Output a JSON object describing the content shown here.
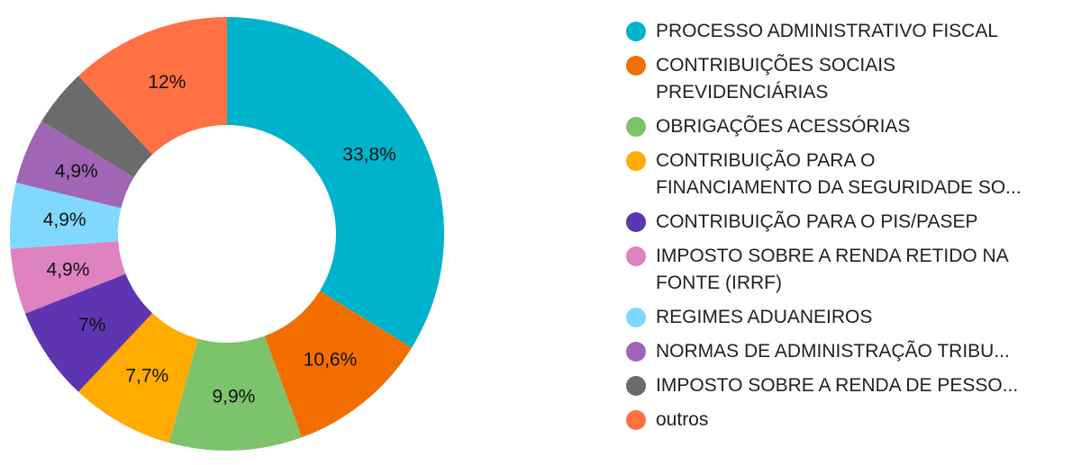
{
  "chart_data": {
    "type": "pie",
    "donut": true,
    "legend_position": "right",
    "slices": [
      {
        "label": "PROCESSO ADMINISTRATIVO FISCAL",
        "legend_text": "PROCESSO ADMINISTRATIVO FISCAL",
        "value": 33.8,
        "display": "33,8%",
        "color": "#00b3cc"
      },
      {
        "label": "CONTRIBUIÇÕES SOCIAIS PREVIDENCIÁRIAS",
        "legend_text": "CONTRIBUIÇÕES SOCIAIS\nPREVIDENCIÁRIAS",
        "value": 10.6,
        "display": "10,6%",
        "color": "#f26e00"
      },
      {
        "label": "OBRIGAÇÕES ACESSÓRIAS",
        "legend_text": "OBRIGAÇÕES ACESSÓRIAS",
        "value": 9.9,
        "display": "9,9%",
        "color": "#7dc36b"
      },
      {
        "label": "CONTRIBUIÇÃO PARA O FINANCIAMENTO DA SEGURIDADE SO...",
        "legend_text": "CONTRIBUIÇÃO PARA O\nFINANCIAMENTO DA SEGURIDADE SO...",
        "value": 7.7,
        "display": "7,7%",
        "color": "#ffab00"
      },
      {
        "label": "CONTRIBUIÇÃO PARA O PIS/PASEP",
        "legend_text": "CONTRIBUIÇÃO PARA O PIS/PASEP",
        "value": 7.0,
        "display": "7%",
        "color": "#5e35b1",
        "label_color": "#d8d0ec"
      },
      {
        "label": "IMPOSTO SOBRE A RENDA RETIDO NA FONTE (IRRF)",
        "legend_text": "IMPOSTO SOBRE A RENDA RETIDO NA\nFONTE (IRRF)",
        "value": 4.9,
        "display": "4,9%",
        "color": "#de82c0"
      },
      {
        "label": "REGIMES ADUANEIROS",
        "legend_text": "REGIMES ADUANEIROS",
        "value": 4.9,
        "display": "4,9%",
        "color": "#80d8ff"
      },
      {
        "label": "NORMAS DE ADMINISTRAÇÃO TRIBU...",
        "legend_text": "NORMAS DE ADMINISTRAÇÃO TRIBU...",
        "value": 4.9,
        "display": "4,9%",
        "color": "#a065b4"
      },
      {
        "label": "IMPOSTO SOBRE A RENDA DE PESSO...",
        "legend_text": "IMPOSTO SOBRE A RENDA DE PESSO...",
        "value": 4.3,
        "display": "",
        "color": "#6b6b6b"
      },
      {
        "label": "outros",
        "legend_text": "outros",
        "value": 12.0,
        "display": "12%",
        "color": "#ff7043"
      }
    ]
  }
}
